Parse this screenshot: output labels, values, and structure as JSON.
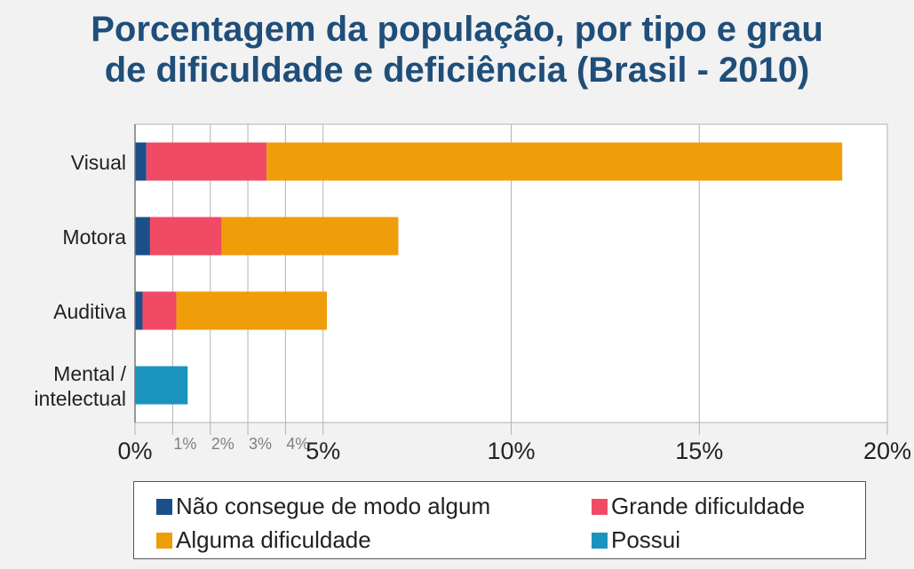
{
  "title_line1": "Porcentagem da população, por tipo e grau",
  "title_line2": "de dificuldade e deficiência (Brasil - 2010)",
  "colors": {
    "title": "#1f4e79",
    "nao_consegue": "#1a4f8b",
    "grande": "#f04a65",
    "alguma": "#f09d0a",
    "possui": "#1a94bf",
    "grid": "#b3b3b3",
    "plot_bg": "#ffffff"
  },
  "legend": [
    {
      "label": "Não consegue de modo algum",
      "color_key": "nao_consegue"
    },
    {
      "label": "Grande dificuldade",
      "color_key": "grande"
    },
    {
      "label": "Alguma dificuldade",
      "color_key": "alguma"
    },
    {
      "label": "Possui",
      "color_key": "possui"
    }
  ],
  "chart_data": {
    "type": "bar",
    "orientation": "horizontal",
    "stacked": true,
    "title": "Porcentagem da população, por tipo e grau de dificuldade e deficiência (Brasil - 2010)",
    "categories": [
      "Visual",
      "Motora",
      "Auditiva",
      "Mental / intelectual"
    ],
    "category_lines": [
      [
        "Visual"
      ],
      [
        "Motora"
      ],
      [
        "Auditiva"
      ],
      [
        "Mental /",
        "intelectual"
      ]
    ],
    "series": [
      {
        "name": "Não consegue de modo algum",
        "color_key": "nao_consegue",
        "values": [
          0.3,
          0.4,
          0.2,
          0
        ]
      },
      {
        "name": "Grande dificuldade",
        "color_key": "grande",
        "values": [
          3.2,
          1.9,
          0.9,
          0
        ]
      },
      {
        "name": "Alguma dificuldade",
        "color_key": "alguma",
        "values": [
          15.3,
          4.7,
          4.0,
          0
        ]
      },
      {
        "name": "Possui",
        "color_key": "possui",
        "values": [
          0,
          0,
          0,
          1.4
        ]
      }
    ],
    "xlim": [
      0,
      20
    ],
    "major_ticks": [
      {
        "value": 0,
        "label": "0%"
      },
      {
        "value": 5,
        "label": "5%"
      },
      {
        "value": 10,
        "label": "10%"
      },
      {
        "value": 15,
        "label": "15%"
      },
      {
        "value": 20,
        "label": "20%"
      }
    ],
    "minor_ticks": [
      {
        "value": 1,
        "label": "1%"
      },
      {
        "value": 2,
        "label": "2%"
      },
      {
        "value": 3,
        "label": "3%"
      },
      {
        "value": 4,
        "label": "4%"
      }
    ],
    "grid": true,
    "legend_position": "bottom"
  }
}
